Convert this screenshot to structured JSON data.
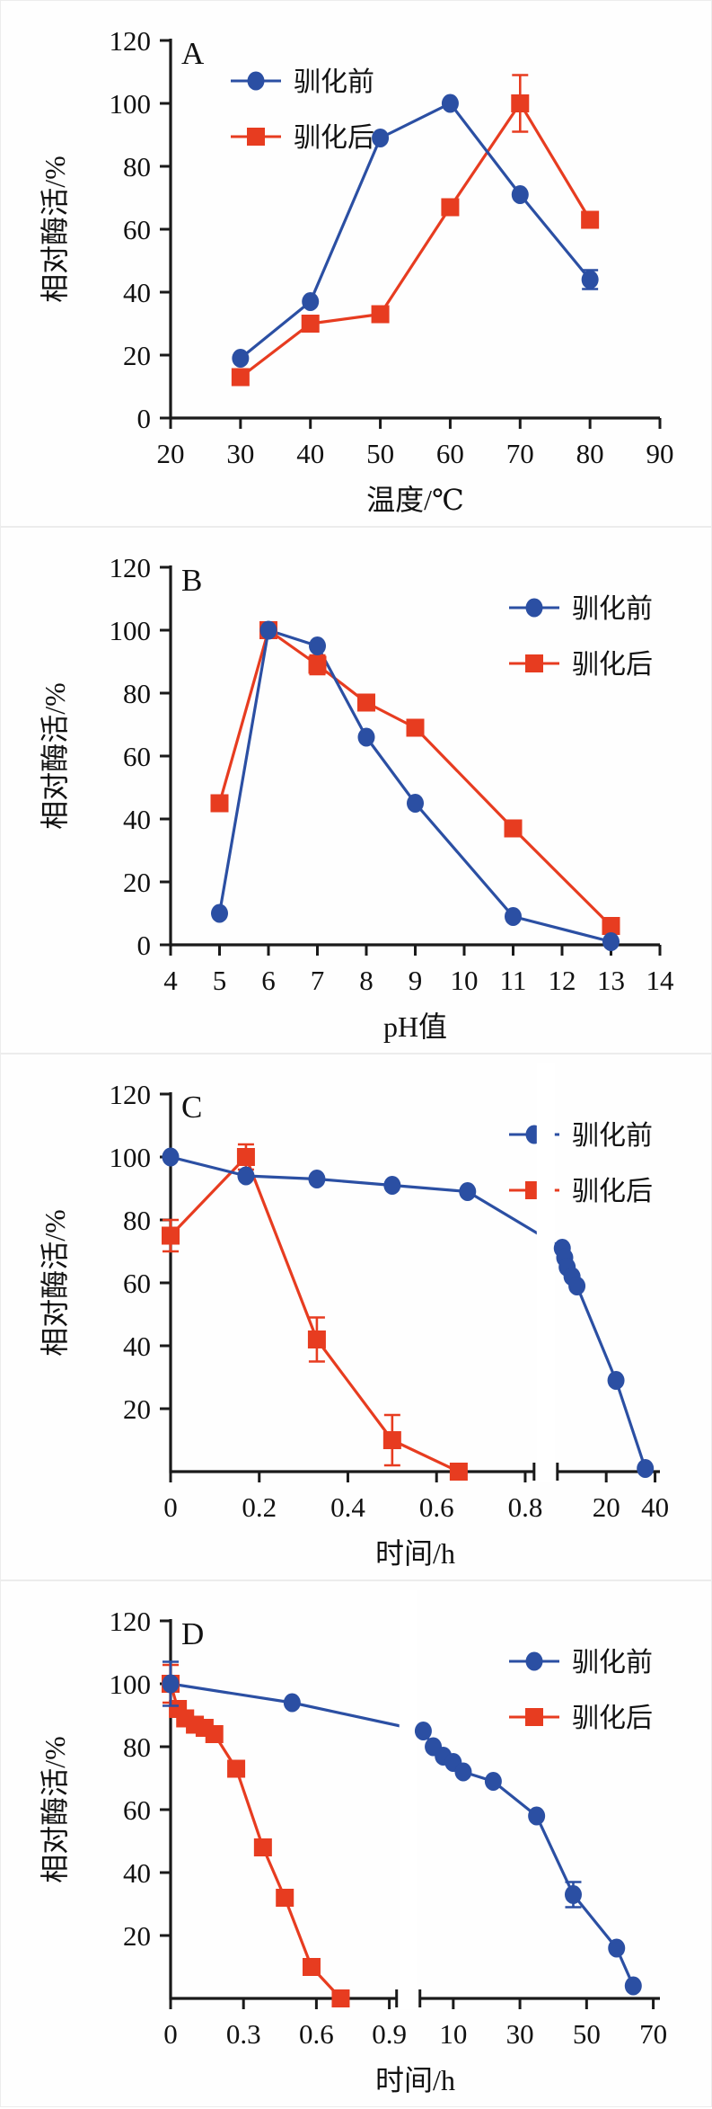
{
  "colors": {
    "before": "#2b4fa3",
    "after": "#e73c20",
    "axis": "#1a1a1a",
    "background": "#ffffff"
  },
  "legend": {
    "before_label": "驯化前",
    "after_label": "驯化后"
  },
  "chart_data": [
    {
      "type": "line",
      "panel_label": "A",
      "xlabel": "温度/℃",
      "ylabel": "相对酶活/%",
      "ylim": [
        0,
        120
      ],
      "yticks": [
        0,
        20,
        40,
        60,
        80,
        100,
        120
      ],
      "legend_position": "top-left",
      "legend_entries": [
        "驯化前",
        "驯化后"
      ],
      "x_segments": [
        {
          "min": 20,
          "max": 90,
          "ticks": [
            20,
            30,
            40,
            50,
            60,
            70,
            80,
            90
          ],
          "share": 1
        }
      ],
      "series": [
        {
          "name": "驯化前",
          "marker": "circle",
          "color_key": "before",
          "points": [
            [
              30,
              19,
              0
            ],
            [
              40,
              37,
              0
            ],
            [
              50,
              89,
              0
            ],
            [
              60,
              100,
              0
            ],
            [
              70,
              71,
              0
            ],
            [
              80,
              44,
              3
            ]
          ]
        },
        {
          "name": "驯化后",
          "marker": "square",
          "color_key": "after",
          "points": [
            [
              30,
              13,
              0
            ],
            [
              40,
              30,
              0
            ],
            [
              50,
              33,
              0
            ],
            [
              60,
              67,
              0
            ],
            [
              70,
              100,
              9
            ],
            [
              80,
              63,
              0
            ]
          ]
        }
      ]
    },
    {
      "type": "line",
      "panel_label": "B",
      "xlabel": "pH值",
      "ylabel": "相对酶活/%",
      "ylim": [
        0,
        120
      ],
      "yticks": [
        0,
        20,
        40,
        60,
        80,
        100,
        120
      ],
      "legend_position": "top-right",
      "legend_entries": [
        "驯化前",
        "驯化后"
      ],
      "x_segments": [
        {
          "min": 4,
          "max": 14,
          "ticks": [
            4,
            5,
            6,
            7,
            8,
            9,
            10,
            11,
            12,
            13,
            14
          ],
          "share": 1
        }
      ],
      "series": [
        {
          "name": "驯化前",
          "marker": "circle",
          "color_key": "before",
          "points": [
            [
              5,
              10,
              0
            ],
            [
              6,
              100,
              0
            ],
            [
              7,
              95,
              0
            ],
            [
              8,
              66,
              0
            ],
            [
              9,
              45,
              0
            ],
            [
              11,
              9,
              0
            ],
            [
              13,
              1,
              0
            ]
          ]
        },
        {
          "name": "驯化后",
          "marker": "square",
          "color_key": "after",
          "points": [
            [
              5,
              45,
              0
            ],
            [
              6,
              100,
              0
            ],
            [
              7,
              89,
              3
            ],
            [
              8,
              77,
              0
            ],
            [
              9,
              69,
              0
            ],
            [
              11,
              37,
              0
            ],
            [
              13,
              6,
              0
            ]
          ]
        }
      ]
    },
    {
      "type": "line",
      "panel_label": "C",
      "xlabel": "时间/h",
      "ylabel": "相对酶活/%",
      "ylim": [
        0,
        120
      ],
      "yticks": [
        20,
        40,
        60,
        80,
        100,
        120
      ],
      "legend_position": "top-right",
      "legend_entries": [
        "驯化前",
        "驯化后"
      ],
      "axis_break": true,
      "x_segments": [
        {
          "min": 0,
          "max": 0.82,
          "ticks": [
            0,
            0.2,
            0.4,
            0.6,
            0.8
          ],
          "share": 0.78
        },
        {
          "min": 0,
          "max": 42,
          "ticks": [
            20,
            40
          ],
          "share": 0.22
        }
      ],
      "series": [
        {
          "name": "驯化前",
          "marker": "circle",
          "color_key": "before",
          "points": [
            [
              0,
              100,
              0
            ],
            [
              0.17,
              94,
              0
            ],
            [
              0.33,
              93,
              0
            ],
            [
              0.5,
              91,
              0
            ],
            [
              0.67,
              89,
              0
            ],
            [
              2,
              71,
              0
            ],
            [
              3,
              68,
              0
            ],
            [
              4,
              65,
              0
            ],
            [
              6,
              62,
              0
            ],
            [
              8,
              59,
              0
            ],
            [
              24,
              29,
              0
            ],
            [
              36,
              1,
              0
            ]
          ]
        },
        {
          "name": "驯化后",
          "marker": "square",
          "color_key": "after",
          "points": [
            [
              0,
              75,
              5
            ],
            [
              0.17,
              100,
              4
            ],
            [
              0.33,
              42,
              7
            ],
            [
              0.5,
              10,
              8
            ],
            [
              0.65,
              0,
              0
            ]
          ]
        }
      ]
    },
    {
      "type": "line",
      "panel_label": "D",
      "xlabel": "时间/h",
      "ylabel": "相对酶活/%",
      "ylim": [
        0,
        120
      ],
      "yticks": [
        20,
        40,
        60,
        80,
        100,
        120
      ],
      "legend_position": "top-right",
      "legend_entries": [
        "驯化前",
        "驯化后"
      ],
      "axis_break": true,
      "x_segments": [
        {
          "min": 0,
          "max": 0.93,
          "ticks": [
            0,
            0.3,
            0.6,
            0.9
          ],
          "share": 0.485
        },
        {
          "min": 0,
          "max": 72,
          "ticks": [
            10,
            30,
            50,
            70
          ],
          "share": 0.515
        }
      ],
      "series": [
        {
          "name": "驯化前",
          "marker": "circle",
          "color_key": "before",
          "points": [
            [
              0,
              100,
              7
            ],
            [
              0.5,
              94,
              0
            ],
            [
              1,
              85,
              0
            ],
            [
              4,
              80,
              0
            ],
            [
              7,
              77,
              0
            ],
            [
              10,
              75,
              0
            ],
            [
              13,
              72,
              0
            ],
            [
              22,
              69,
              0
            ],
            [
              35,
              58,
              0
            ],
            [
              46,
              33,
              4
            ],
            [
              59,
              16,
              0
            ],
            [
              64,
              4,
              0
            ]
          ]
        },
        {
          "name": "驯化后",
          "marker": "square",
          "color_key": "after",
          "points": [
            [
              0,
              100,
              6
            ],
            [
              0.03,
              92,
              0
            ],
            [
              0.06,
              89,
              0
            ],
            [
              0.1,
              87,
              0
            ],
            [
              0.14,
              86,
              0
            ],
            [
              0.18,
              84,
              0
            ],
            [
              0.27,
              73,
              0
            ],
            [
              0.38,
              48,
              0
            ],
            [
              0.47,
              32,
              0
            ],
            [
              0.58,
              10,
              0
            ],
            [
              0.7,
              0,
              0
            ]
          ]
        }
      ]
    }
  ]
}
